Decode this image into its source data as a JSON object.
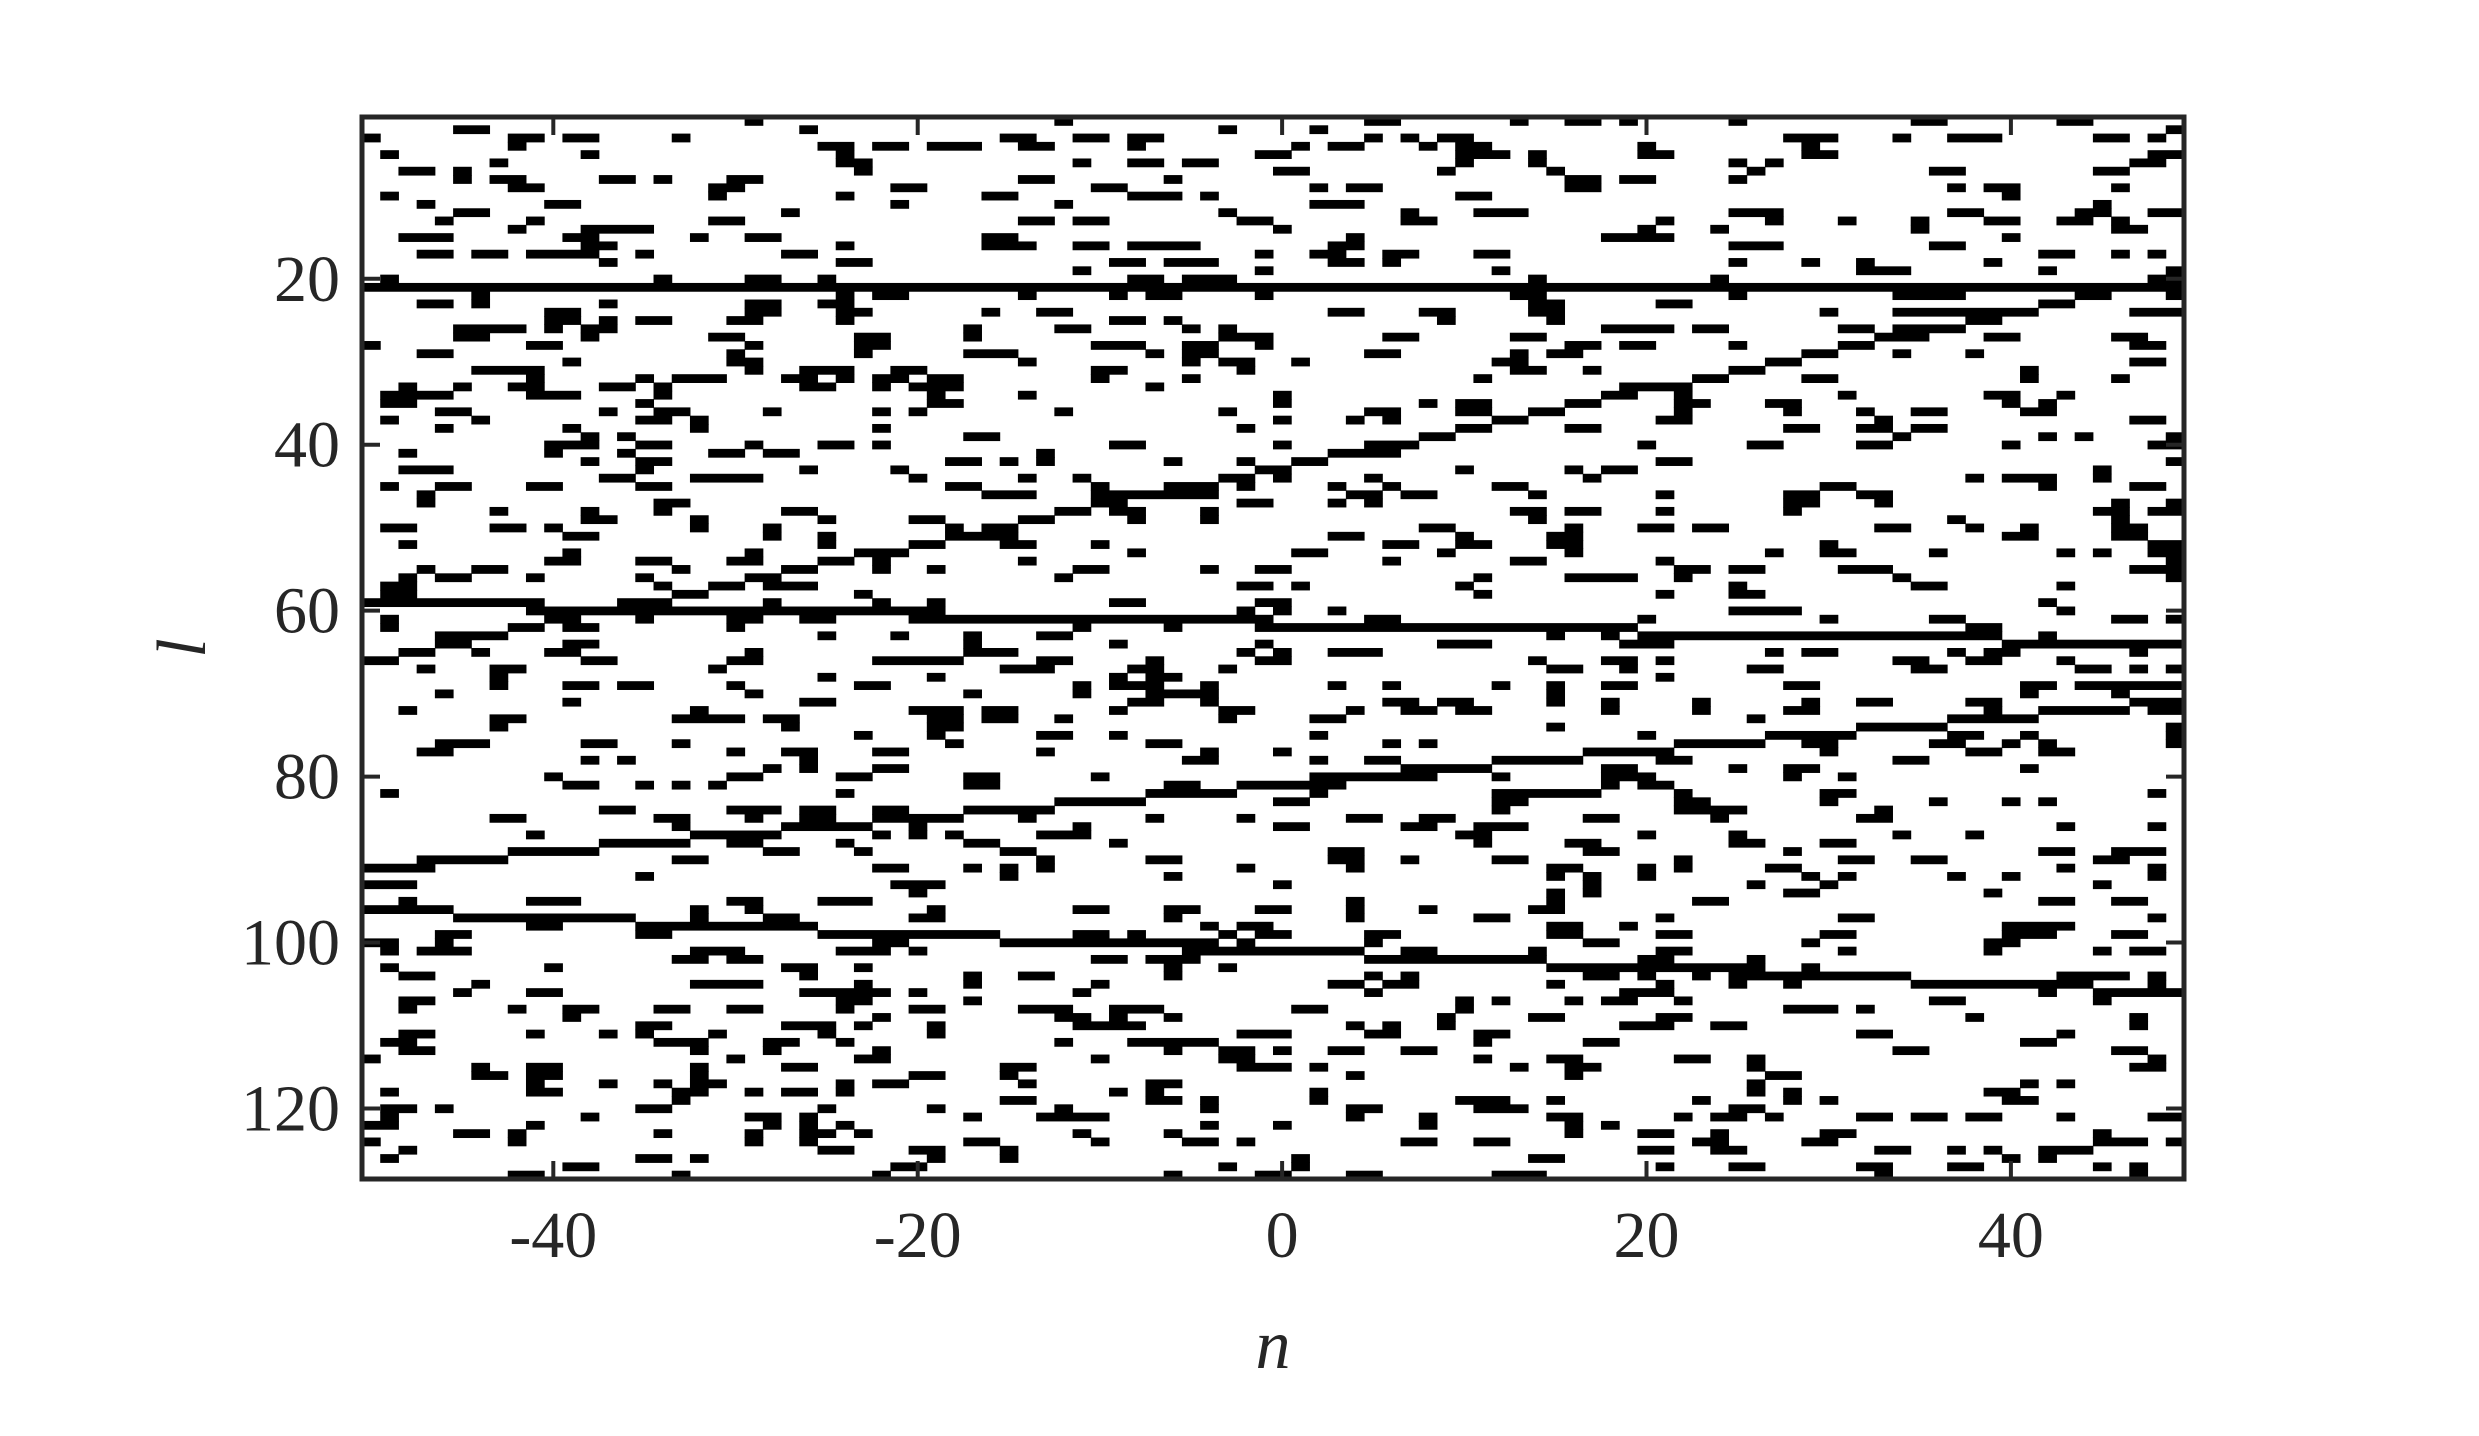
{
  "chart_data": {
    "type": "heatmap",
    "title": "",
    "xlabel": "n",
    "ylabel": "l",
    "xlim": [
      -50.5,
      49.5
    ],
    "ylim": [
      0.5,
      128.5
    ],
    "y_reversed": true,
    "grid": false,
    "legend": "none",
    "x_ticks": [
      -40,
      -20,
      0,
      20,
      40
    ],
    "x_tick_labels": [
      "-40",
      "-20",
      "0",
      "20",
      "40"
    ],
    "y_ticks": [
      20,
      40,
      60,
      80,
      100,
      120
    ],
    "y_tick_labels": [
      "20",
      "40",
      "60",
      "80",
      "100",
      "120"
    ],
    "colors": {
      "on": "#000000",
      "off": "#ffffff",
      "axis": "#262626"
    },
    "cell_values": "binary: 1 = black, 0 = white",
    "horizontal_lines": [
      {
        "n_start": -50,
        "n_end": 49,
        "l_start": 21,
        "l_end": 21
      },
      {
        "n_start": -50,
        "n_end": 49,
        "l_start": 59,
        "l_end": 64
      },
      {
        "n_start": -50,
        "n_end": 49,
        "l_start": 96,
        "l_end": 106
      }
    ],
    "sloped_lines": [
      {
        "n_start": -50,
        "n_end": 49,
        "l_start": 66,
        "l_end": 20
      },
      {
        "n_start": -50,
        "n_end": 49,
        "l_start": 91,
        "l_end": 71
      }
    ],
    "scatter_density": 0.11,
    "scatter_seed": 20240611
  }
}
